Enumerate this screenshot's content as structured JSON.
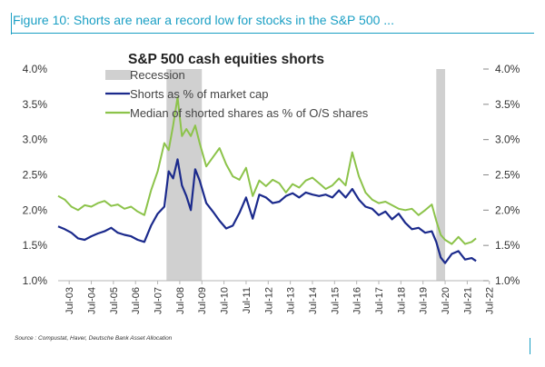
{
  "figure": {
    "title": "Figure 10: Shorts are near a record low for stocks in the S&P 500 ...",
    "source": "Source : Compustat, Haver, Deutsche Bank Asset Allocation"
  },
  "colors": {
    "frame_accent": "#1a9fc4",
    "recession": "#d0d0d0",
    "shorts_line": "#1b2a8c",
    "median_line": "#8cc34a"
  },
  "chart_data": {
    "type": "line",
    "title": "S&P 500 cash equities shorts",
    "xlabel": "",
    "ylabel": "",
    "xlim": [
      2003.0,
      2022.1
    ],
    "ylim": [
      1.0,
      4.0
    ],
    "y_ticks": [
      "1.0%",
      "1.5%",
      "2.0%",
      "2.5%",
      "3.0%",
      "3.5%",
      "4.0%"
    ],
    "y2_ticks": [
      "1.0%",
      "1.5%",
      "2.0%",
      "2.5%",
      "3.0%",
      "3.5%",
      "4.0%"
    ],
    "x_ticks": [
      "Jul-03",
      "Jul-04",
      "Jul-05",
      "Jul-06",
      "Jul-07",
      "Jul-08",
      "Jul-09",
      "Jul-10",
      "Jul-11",
      "Jul-12",
      "Jul-13",
      "Jul-14",
      "Jul-15",
      "Jul-16",
      "Jul-17",
      "Jul-18",
      "Jul-19",
      "Jul-20",
      "Jul-21",
      "Jul-22"
    ],
    "grid": false,
    "legend": {
      "position": "top-left",
      "entries": [
        "Recession",
        "Shorts as % of market cap",
        "Median of shorted shares as % of O/S shares"
      ]
    },
    "recessions": [
      {
        "name": "Recession",
        "start": 2007.9,
        "end": 2009.5
      },
      {
        "name": "Recession",
        "start": 2020.1,
        "end": 2020.5
      }
    ],
    "series": [
      {
        "name": "Shorts as % of market cap",
        "x": [
          2003.0,
          2003.3,
          2003.6,
          2003.9,
          2004.2,
          2004.5,
          2004.8,
          2005.1,
          2005.4,
          2005.7,
          2006.0,
          2006.3,
          2006.6,
          2006.9,
          2007.2,
          2007.5,
          2007.8,
          2008.0,
          2008.2,
          2008.4,
          2008.6,
          2008.8,
          2009.0,
          2009.2,
          2009.4,
          2009.7,
          2010.0,
          2010.3,
          2010.6,
          2010.9,
          2011.2,
          2011.5,
          2011.8,
          2012.1,
          2012.4,
          2012.7,
          2013.0,
          2013.3,
          2013.6,
          2013.9,
          2014.2,
          2014.5,
          2014.8,
          2015.1,
          2015.4,
          2015.7,
          2016.0,
          2016.3,
          2016.6,
          2016.9,
          2017.2,
          2017.5,
          2017.8,
          2018.1,
          2018.4,
          2018.7,
          2019.0,
          2019.3,
          2019.6,
          2019.9,
          2020.1,
          2020.3,
          2020.5,
          2020.8,
          2021.1,
          2021.4,
          2021.7,
          2021.9
        ],
        "values": [
          1.77,
          1.73,
          1.68,
          1.6,
          1.58,
          1.63,
          1.67,
          1.7,
          1.75,
          1.68,
          1.65,
          1.63,
          1.58,
          1.55,
          1.78,
          1.95,
          2.05,
          2.55,
          2.45,
          2.72,
          2.35,
          2.2,
          2.0,
          2.58,
          2.42,
          2.1,
          1.98,
          1.85,
          1.74,
          1.78,
          1.96,
          2.18,
          1.88,
          2.22,
          2.18,
          2.1,
          2.12,
          2.2,
          2.24,
          2.18,
          2.25,
          2.22,
          2.2,
          2.22,
          2.18,
          2.28,
          2.18,
          2.3,
          2.15,
          2.05,
          2.02,
          1.93,
          1.98,
          1.87,
          1.95,
          1.82,
          1.73,
          1.75,
          1.68,
          1.7,
          1.55,
          1.33,
          1.25,
          1.38,
          1.42,
          1.3,
          1.32,
          1.28
        ]
      },
      {
        "name": "Median of shorted shares as % of O/S shares",
        "x": [
          2003.0,
          2003.3,
          2003.6,
          2003.9,
          2004.2,
          2004.5,
          2004.8,
          2005.1,
          2005.4,
          2005.7,
          2006.0,
          2006.3,
          2006.6,
          2006.9,
          2007.2,
          2007.5,
          2007.8,
          2008.0,
          2008.2,
          2008.4,
          2008.6,
          2008.8,
          2009.0,
          2009.2,
          2009.4,
          2009.7,
          2010.0,
          2010.3,
          2010.6,
          2010.9,
          2011.2,
          2011.5,
          2011.8,
          2012.1,
          2012.4,
          2012.7,
          2013.0,
          2013.3,
          2013.6,
          2013.9,
          2014.2,
          2014.5,
          2014.8,
          2015.1,
          2015.4,
          2015.7,
          2016.0,
          2016.3,
          2016.6,
          2016.9,
          2017.2,
          2017.5,
          2017.8,
          2018.1,
          2018.4,
          2018.7,
          2019.0,
          2019.3,
          2019.6,
          2019.9,
          2020.1,
          2020.3,
          2020.5,
          2020.8,
          2021.1,
          2021.4,
          2021.7,
          2021.9
        ],
        "values": [
          2.2,
          2.15,
          2.05,
          2.0,
          2.07,
          2.05,
          2.1,
          2.13,
          2.06,
          2.08,
          2.02,
          2.05,
          1.98,
          1.93,
          2.28,
          2.55,
          2.95,
          2.85,
          3.2,
          3.6,
          3.05,
          3.15,
          3.05,
          3.2,
          2.95,
          2.62,
          2.75,
          2.88,
          2.65,
          2.48,
          2.43,
          2.6,
          2.2,
          2.42,
          2.34,
          2.43,
          2.38,
          2.25,
          2.37,
          2.32,
          2.42,
          2.46,
          2.38,
          2.3,
          2.35,
          2.45,
          2.35,
          2.82,
          2.48,
          2.25,
          2.15,
          2.1,
          2.12,
          2.07,
          2.02,
          2.0,
          2.02,
          1.93,
          2.0,
          2.08,
          1.85,
          1.65,
          1.58,
          1.52,
          1.62,
          1.52,
          1.55,
          1.6
        ]
      }
    ]
  }
}
